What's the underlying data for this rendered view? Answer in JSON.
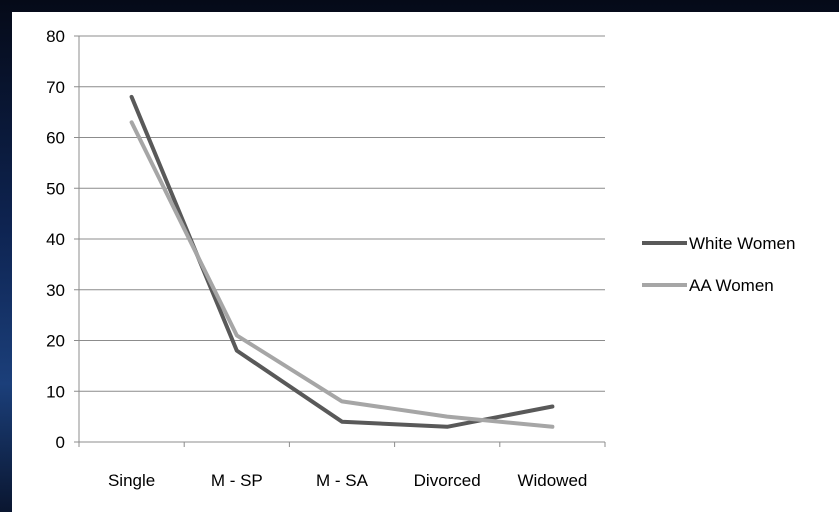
{
  "chart_data": {
    "type": "line",
    "title": "",
    "xlabel": "",
    "ylabel": "",
    "categories": [
      "Single",
      "M - SP",
      "M - SA",
      "Divorced",
      "Widowed"
    ],
    "ylim": [
      0,
      80
    ],
    "yticks": [
      0,
      10,
      20,
      30,
      40,
      50,
      60,
      70,
      80
    ],
    "grid": true,
    "legend_position": "right",
    "series": [
      {
        "name": "White Women",
        "color": "#595959",
        "values": [
          68,
          18,
          4,
          3,
          7
        ]
      },
      {
        "name": "AA Women",
        "color": "#a6a6a6",
        "values": [
          63,
          21,
          8,
          5,
          3
        ]
      }
    ]
  }
}
